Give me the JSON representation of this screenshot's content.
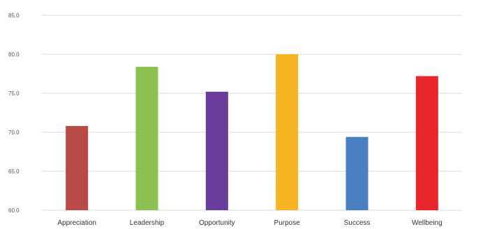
{
  "chart_data": {
    "type": "bar",
    "categories": [
      "Appreciation",
      "Leadership",
      "Opportunity",
      "Purpose",
      "Success",
      "Wellbeing"
    ],
    "values": [
      70.8,
      78.4,
      75.2,
      80.0,
      69.4,
      77.2
    ],
    "colors": [
      "#b94a48",
      "#8cc152",
      "#6a3d9a",
      "#f6b322",
      "#4a7fc1",
      "#e8262b"
    ],
    "title": "",
    "xlabel": "",
    "ylabel": "",
    "ylim": [
      60,
      85
    ],
    "yticks": [
      60,
      65,
      70,
      75,
      80,
      85
    ],
    "ytick_labels": [
      "60.0",
      "65.0",
      "70.0",
      "75.0",
      "80.0",
      "85.0"
    ],
    "grid": true,
    "legend": "none"
  }
}
